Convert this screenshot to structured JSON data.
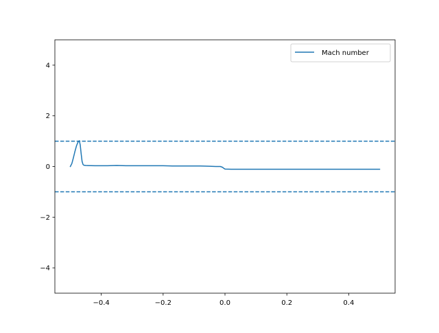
{
  "chart_data": {
    "type": "line",
    "title": "",
    "xlabel": "",
    "ylabel": "",
    "xlim": [
      -0.55,
      0.55
    ],
    "ylim": [
      -5,
      5
    ],
    "xticks": [
      -0.4,
      -0.2,
      0.0,
      0.2,
      0.4
    ],
    "xtick_labels": [
      "−0.4",
      "−0.2",
      "0.0",
      "0.2",
      "0.4"
    ],
    "yticks": [
      4,
      2,
      0,
      -2,
      -4
    ],
    "ytick_labels": [
      "4",
      "2",
      "0",
      "−2",
      "−4"
    ],
    "grid": false,
    "legend_position": "upper-right",
    "series": [
      {
        "name": "Mach number",
        "color": "#1f77b4",
        "style": "solid",
        "x": [
          -0.5,
          -0.495,
          -0.49,
          -0.485,
          -0.48,
          -0.475,
          -0.471,
          -0.468,
          -0.465,
          -0.462,
          -0.459,
          -0.456,
          -0.45,
          -0.42,
          -0.38,
          -0.35,
          -0.32,
          -0.29,
          -0.26,
          -0.23,
          -0.2,
          -0.17,
          -0.14,
          -0.11,
          -0.08,
          -0.05,
          -0.03,
          -0.015,
          -0.008,
          -0.004,
          0.0,
          0.02,
          0.05,
          0.08,
          0.11,
          0.14,
          0.17,
          0.2,
          0.23,
          0.26,
          0.29,
          0.32,
          0.35,
          0.38,
          0.41,
          0.44,
          0.47,
          0.5
        ],
        "y": [
          0.0,
          0.12,
          0.35,
          0.6,
          0.82,
          0.97,
          1.02,
          0.85,
          0.5,
          0.2,
          0.08,
          0.05,
          0.04,
          0.03,
          0.03,
          0.04,
          0.03,
          0.03,
          0.03,
          0.03,
          0.03,
          0.02,
          0.02,
          0.02,
          0.02,
          0.01,
          0.0,
          0.0,
          -0.03,
          -0.07,
          -0.1,
          -0.11,
          -0.11,
          -0.11,
          -0.11,
          -0.11,
          -0.11,
          -0.11,
          -0.11,
          -0.11,
          -0.11,
          -0.11,
          -0.11,
          -0.11,
          -0.11,
          -0.11,
          -0.11,
          -0.11
        ]
      }
    ],
    "reference_lines": [
      {
        "orientation": "horizontal",
        "y": 1,
        "color": "#1f77b4",
        "style": "dashed"
      },
      {
        "orientation": "horizontal",
        "y": -1,
        "color": "#1f77b4",
        "style": "dashed"
      }
    ]
  }
}
